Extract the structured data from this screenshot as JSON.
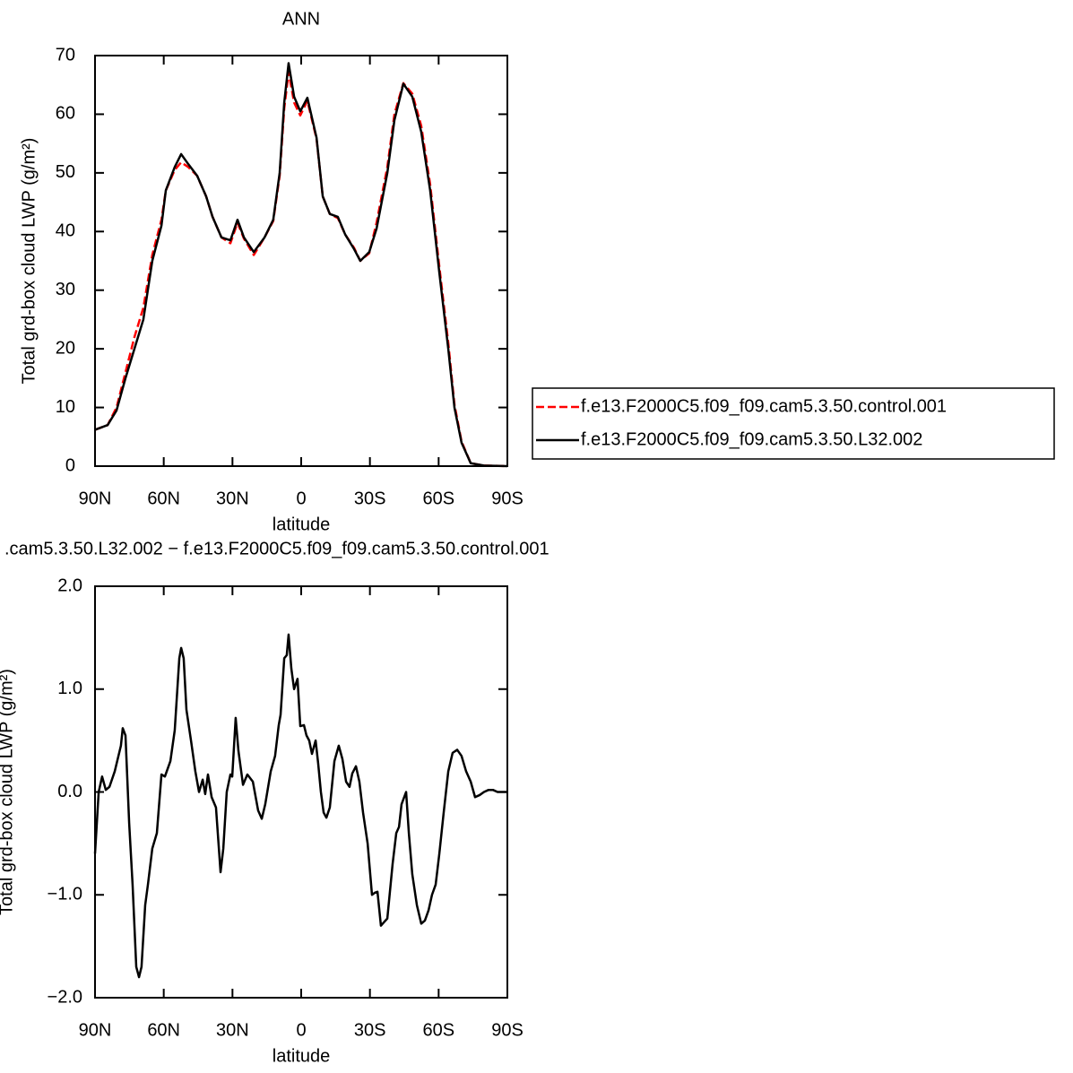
{
  "chart_data": [
    {
      "type": "line",
      "title": "ANN",
      "xlabel": "latitude",
      "ylabel": "Total grd-box cloud LWP (g/m²)",
      "x": [
        90,
        84.5,
        80.6,
        76.7,
        72.8,
        68.9,
        65,
        61,
        59.1,
        55.2,
        52.4,
        49.3,
        45.4,
        41.5,
        38.7,
        34.8,
        30.9,
        27.8,
        25,
        20.7,
        16,
        12.2,
        9.4,
        7.4,
        5.5,
        3.1,
        0.4,
        -2.7,
        -6.7,
        -9.4,
        -12.5,
        -16,
        -19.2,
        -23.1,
        -25.8,
        -29.7,
        -32.9,
        -37.6,
        -40.7,
        -44.6,
        -48.5,
        -52.4,
        -56.3,
        -60.3,
        -64.2,
        -66.9,
        -70,
        -74,
        -79.8,
        -90
      ],
      "series": [
        {
          "name": "f.e13.F2000C5.f09_f09.cam5.3.50.control.001",
          "color": "#ff0000",
          "dash": true,
          "values": [
            6.2,
            7,
            10,
            16,
            22,
            27,
            36,
            42,
            47,
            50.5,
            51.8,
            51,
            49.5,
            46,
            42.5,
            39,
            38,
            41.5,
            38.8,
            36,
            39,
            41.8,
            49.5,
            61,
            67.2,
            62,
            59.8,
            62.3,
            55.8,
            46,
            43,
            42.3,
            39.5,
            37.2,
            35,
            36.3,
            41.5,
            51,
            60,
            65.3,
            63.5,
            58,
            48,
            34,
            21,
            10.5,
            4.2,
            0.5,
            0.1,
            0
          ]
        },
        {
          "name": "f.e13.F2000C5.f09_f09.cam5.3.50.L32.002",
          "color": "#000000",
          "dash": false,
          "values": [
            6.2,
            7,
            9.5,
            15,
            20,
            25,
            35,
            41,
            47,
            51,
            53.2,
            51.5,
            49.5,
            46,
            42.5,
            39,
            38.5,
            42,
            39,
            36.5,
            39,
            42,
            50,
            62,
            68.7,
            63,
            60.5,
            62.8,
            56,
            46,
            43,
            42.5,
            39.5,
            37,
            35,
            36.5,
            40.5,
            50,
            59,
            65.2,
            63,
            57,
            47,
            33,
            20,
            10,
            4,
            0.5,
            0.1,
            0
          ]
        }
      ],
      "xlim": [
        90,
        -90
      ],
      "xticks": [
        {
          "value": 90,
          "label": "90N"
        },
        {
          "value": 60,
          "label": "60N"
        },
        {
          "value": 30,
          "label": "30N"
        },
        0,
        {
          "value": -30,
          "label": "30S"
        },
        {
          "value": -60,
          "label": "60S"
        },
        {
          "value": -90,
          "label": "90S"
        }
      ],
      "ylim": [
        0,
        70
      ],
      "yticks": [
        0,
        10,
        20,
        30,
        40,
        50,
        60,
        70
      ],
      "legend": "right",
      "grid": false
    },
    {
      "type": "line",
      "title": ".cam5.3.50.L32.002 − f.e13.F2000C5.f09_f09.cam5.3.50.control.001",
      "xlabel": "latitude",
      "ylabel": "Total grd-box cloud LWP (g/m²)",
      "x": [
        90,
        88.4,
        86.9,
        85.3,
        83.7,
        81.4,
        78.7,
        77.9,
        76.7,
        75.1,
        73.6,
        72.0,
        70.8,
        69.7,
        68.1,
        66.9,
        65.0,
        63.0,
        61.0,
        59.5,
        57.1,
        55.2,
        53.2,
        52.4,
        51.3,
        50.1,
        48.1,
        46.2,
        44.6,
        43.0,
        41.9,
        40.7,
        39.1,
        37.2,
        35.2,
        34.0,
        32.5,
        30.9,
        30.1,
        28.6,
        27.4,
        25.4,
        23.5,
        21.1,
        18.8,
        17.2,
        15.7,
        13.3,
        11.4,
        9.8,
        9.0,
        7.4,
        6.3,
        5.5,
        4.3,
        3.1,
        1.6,
        0.4,
        -1.2,
        -2.3,
        -3.5,
        -4.7,
        -6.3,
        -7.4,
        -8.6,
        -9.8,
        -11.0,
        -12.5,
        -14.5,
        -16.4,
        -18.0,
        -19.6,
        -21.1,
        -22.3,
        -23.9,
        -25.4,
        -27.0,
        -29.0,
        -30.9,
        -32.1,
        -33.3,
        -34.8,
        -36.0,
        -37.6,
        -39.9,
        -41.5,
        -42.7,
        -43.8,
        -45.8,
        -47.0,
        -48.5,
        -50.5,
        -52.4,
        -54.0,
        -55.6,
        -57.1,
        -58.7,
        -60.3,
        -62.2,
        -64.2,
        -66.1,
        -68.1,
        -70.0,
        -72.0,
        -74.0,
        -75.9,
        -77.9,
        -79.8,
        -81.8,
        -83.7,
        -85.7,
        -90
      ],
      "values": [
        -0.6,
        0,
        0.15,
        0.02,
        0.05,
        0.2,
        0.45,
        0.62,
        0.55,
        -0.3,
        -0.9,
        -1.7,
        -1.8,
        -1.7,
        -1.1,
        -0.9,
        -0.55,
        -0.4,
        0.17,
        0.15,
        0.3,
        0.6,
        1.3,
        1.4,
        1.3,
        0.8,
        0.5,
        0.2,
        0,
        0.12,
        -0.02,
        0.17,
        -0.05,
        -0.15,
        -0.78,
        -0.55,
        0,
        0.17,
        0.15,
        0.72,
        0.4,
        0.07,
        0.17,
        0.1,
        -0.18,
        -0.26,
        -0.12,
        0.2,
        0.35,
        0.65,
        0.75,
        1.3,
        1.33,
        1.53,
        1.2,
        1.0,
        1.1,
        0.64,
        0.65,
        0.55,
        0.5,
        0.37,
        0.5,
        0.28,
        0,
        -0.2,
        -0.25,
        -0.15,
        0.3,
        0.45,
        0.32,
        0.1,
        0.05,
        0.18,
        0.25,
        0.1,
        -0.2,
        -0.5,
        -1.0,
        -0.98,
        -0.97,
        -1.3,
        -1.27,
        -1.23,
        -0.7,
        -0.4,
        -0.34,
        -0.12,
        0,
        -0.4,
        -0.8,
        -1.1,
        -1.28,
        -1.25,
        -1.15,
        -1.0,
        -0.9,
        -0.6,
        -0.2,
        0.2,
        0.38,
        0.41,
        0.35,
        0.2,
        0.1,
        -0.05,
        -0.03,
        0,
        0.02,
        0.02,
        0,
        0
      ],
      "color": "#000000",
      "xlim": [
        90,
        -90
      ],
      "xticks": [
        {
          "value": 90,
          "label": "90N"
        },
        {
          "value": 60,
          "label": "60N"
        },
        {
          "value": 30,
          "label": "30N"
        },
        0,
        {
          "value": -30,
          "label": "30S"
        },
        {
          "value": -60,
          "label": "60S"
        },
        {
          "value": -90,
          "label": "90S"
        }
      ],
      "ylim": [
        -2,
        2
      ],
      "yticks": [
        {
          "value": -2,
          "label": "−2.0"
        },
        {
          "value": -1,
          "label": "−1.0"
        },
        {
          "value": 0,
          "label": "0.0"
        },
        {
          "value": 1,
          "label": "1.0"
        },
        {
          "value": 2,
          "label": "2.0"
        }
      ],
      "grid": false
    }
  ]
}
